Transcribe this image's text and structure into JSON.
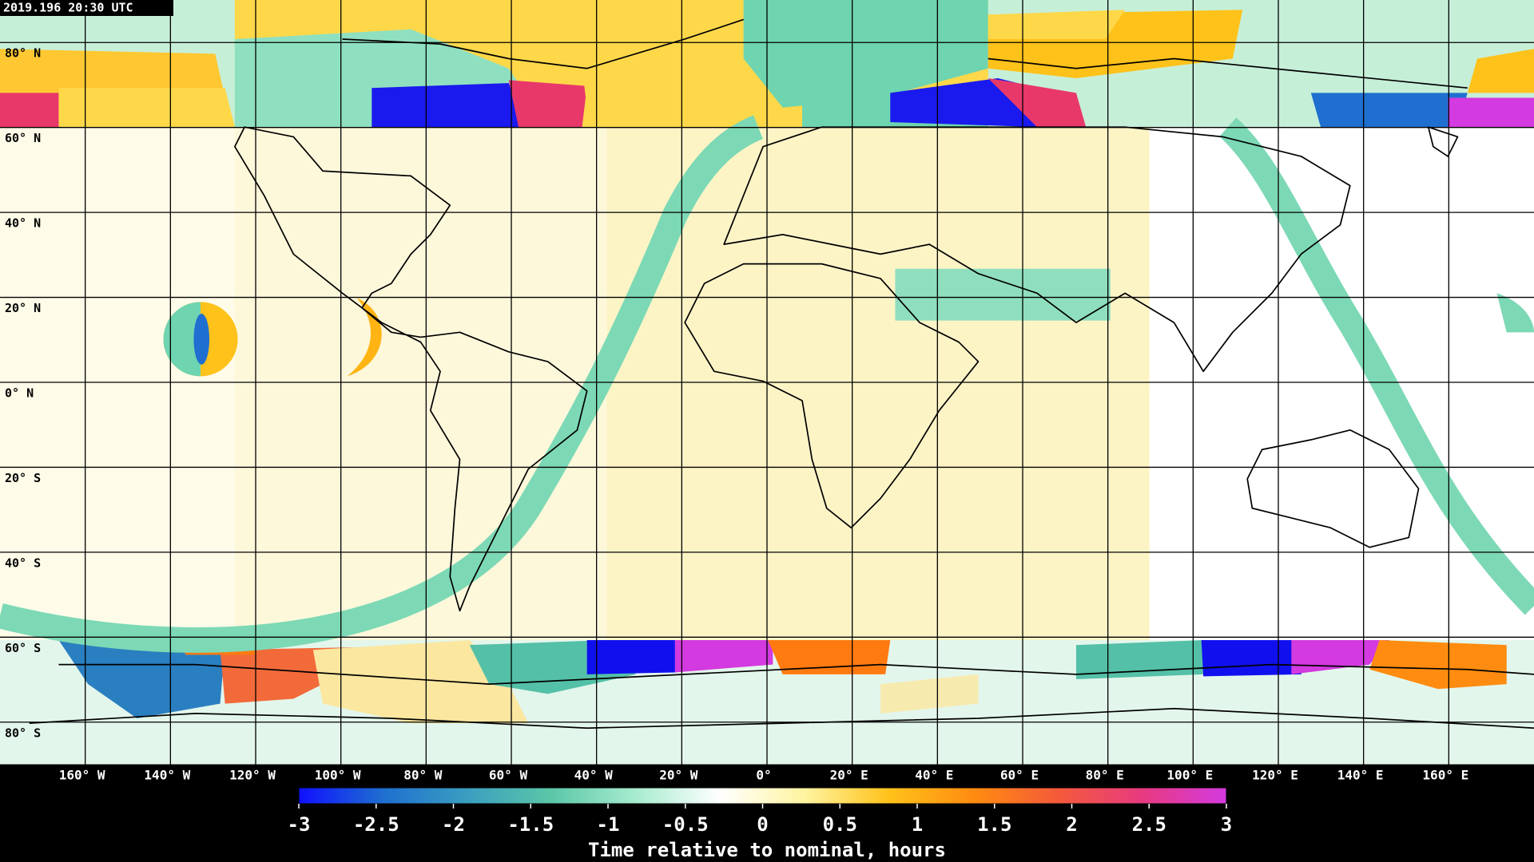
{
  "timestamp": "2019.196 20:30 UTC",
  "map": {
    "lat_lines": [
      {
        "value": 80,
        "label": "80° N"
      },
      {
        "value": 60,
        "label": "60° N"
      },
      {
        "value": 40,
        "label": "40° N"
      },
      {
        "value": 20,
        "label": "20° N"
      },
      {
        "value": 0,
        "label": "0° N"
      },
      {
        "value": -20,
        "label": "20° S"
      },
      {
        "value": -40,
        "label": "40° S"
      },
      {
        "value": -60,
        "label": "60° S"
      },
      {
        "value": -80,
        "label": "80° S"
      }
    ],
    "lon_lines": [
      {
        "value": -160,
        "label": "160° W"
      },
      {
        "value": -140,
        "label": "140° W"
      },
      {
        "value": -120,
        "label": "120° W"
      },
      {
        "value": -100,
        "label": "100° W"
      },
      {
        "value": -80,
        "label": "80° W"
      },
      {
        "value": -60,
        "label": "60° W"
      },
      {
        "value": -40,
        "label": "40° W"
      },
      {
        "value": -20,
        "label": "20° W"
      },
      {
        "value": 0,
        "label": "0°"
      },
      {
        "value": 20,
        "label": "20° E"
      },
      {
        "value": 40,
        "label": "40° E"
      },
      {
        "value": 60,
        "label": "60° E"
      },
      {
        "value": 80,
        "label": "80° E"
      },
      {
        "value": 100,
        "label": "100° E"
      },
      {
        "value": 120,
        "label": "120° E"
      },
      {
        "value": 140,
        "label": "140° E"
      },
      {
        "value": 160,
        "label": "160° E"
      }
    ],
    "lon_range": [
      -180,
      180
    ],
    "lat_range": [
      90,
      -90
    ]
  },
  "colorbar": {
    "title": "Time relative to nominal, hours",
    "clim": [
      -3,
      3
    ],
    "ticks": [
      -3,
      -2.5,
      -2,
      -1.5,
      -1,
      -0.5,
      0,
      0.5,
      1,
      1.5,
      2,
      2.5,
      3
    ],
    "colormap": [
      "#1010ff",
      "#1f6fd0",
      "#3a9fc0",
      "#5cc7a8",
      "#a8ecd0",
      "#ffffff",
      "#fff4a0",
      "#ffc21a",
      "#ff8c10",
      "#f45a3a",
      "#e83a80",
      "#d33adf"
    ]
  }
}
